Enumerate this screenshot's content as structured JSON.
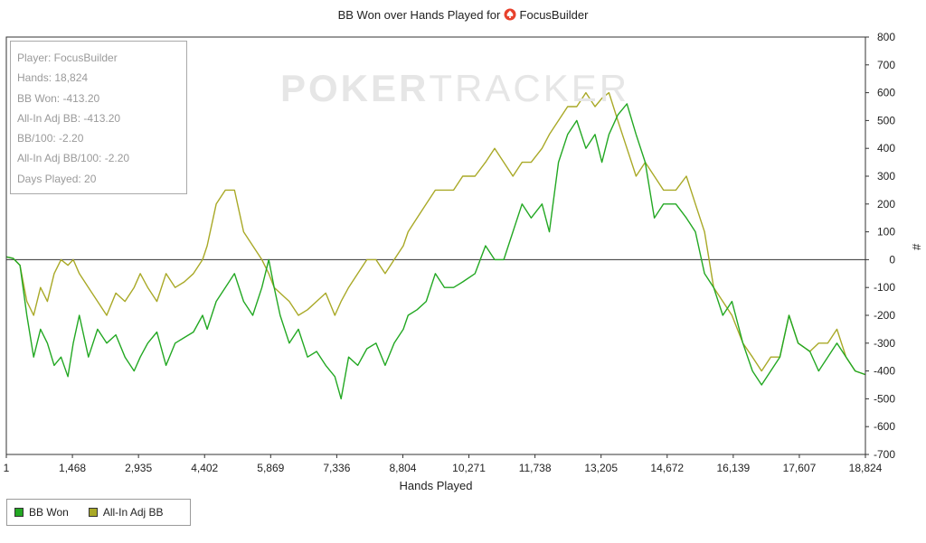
{
  "title": {
    "text": "BB Won over Hands Played for",
    "player": "FocusBuilder",
    "icon": "spade-icon",
    "icon_color": "#e8412c"
  },
  "watermark": {
    "bold_part": "POKER",
    "light_part": "TRACKER"
  },
  "stats": [
    "Player: FocusBuilder",
    "Hands: 18,824",
    "BB Won: -413.20",
    "All-In Adj BB: -413.20",
    "BB/100: -2.20",
    "All-In Adj BB/100: -2.20",
    "Days Played: 20"
  ],
  "legend": [
    {
      "name": "BB Won",
      "color": "#23a823"
    },
    {
      "name": "All-In Adj BB",
      "color": "#a9a927"
    }
  ],
  "chart_data": {
    "type": "line",
    "title": "BB Won over Hands Played for FocusBuilder",
    "xlabel": "Hands Played",
    "ylabel": "#",
    "xlim": [
      1,
      18824
    ],
    "ylim": [
      -700,
      800
    ],
    "x_ticks": [
      "1",
      "1,468",
      "2,935",
      "4,402",
      "5,869",
      "7,336",
      "8,804",
      "10,271",
      "11,738",
      "13,205",
      "14,672",
      "16,139",
      "17,607",
      "18,824"
    ],
    "y_ticks": [
      800,
      700,
      600,
      500,
      400,
      300,
      200,
      100,
      0,
      -100,
      -200,
      -300,
      -400,
      -500,
      -600,
      -700
    ],
    "grid": false,
    "legend_position": "bottom-left",
    "series": [
      {
        "name": "BB Won",
        "color": "#23a823",
        "x": [
          1,
          150,
          300,
          450,
          600,
          750,
          900,
          1050,
          1200,
          1350,
          1468,
          1600,
          1800,
          2000,
          2200,
          2400,
          2600,
          2800,
          2935,
          3100,
          3300,
          3500,
          3700,
          3900,
          4100,
          4300,
          4402,
          4600,
          4800,
          5000,
          5200,
          5400,
          5600,
          5750,
          5869,
          6000,
          6200,
          6400,
          6600,
          6800,
          7000,
          7200,
          7336,
          7500,
          7700,
          7900,
          8100,
          8300,
          8500,
          8700,
          8804,
          9000,
          9200,
          9400,
          9600,
          9800,
          10000,
          10271,
          10500,
          10700,
          10900,
          11100,
          11300,
          11500,
          11738,
          11900,
          12100,
          12300,
          12500,
          12700,
          12900,
          13050,
          13205,
          13400,
          13600,
          13800,
          14000,
          14200,
          14400,
          14672,
          14900,
          15100,
          15300,
          15500,
          15700,
          15900,
          16139,
          16350,
          16550,
          16750,
          16950,
          17150,
          17350,
          17607,
          17800,
          18000,
          18200,
          18400,
          18600,
          18824
        ],
        "values": [
          10,
          5,
          -20,
          -200,
          -350,
          -250,
          -300,
          -380,
          -350,
          -420,
          -300,
          -200,
          -350,
          -250,
          -300,
          -270,
          -350,
          -400,
          -350,
          -300,
          -260,
          -380,
          -300,
          -280,
          -260,
          -200,
          -250,
          -150,
          -100,
          -50,
          -150,
          -200,
          -100,
          0,
          -100,
          -200,
          -300,
          -250,
          -350,
          -330,
          -380,
          -420,
          -500,
          -350,
          -380,
          -320,
          -300,
          -380,
          -300,
          -250,
          -200,
          -180,
          -150,
          -50,
          -100,
          -100,
          -80,
          -50,
          50,
          0,
          0,
          100,
          200,
          150,
          200,
          100,
          350,
          450,
          500,
          400,
          450,
          350,
          450,
          520,
          560,
          450,
          350,
          150,
          200,
          200,
          150,
          100,
          -50,
          -100,
          -200,
          -150,
          -300,
          -400,
          -450,
          -400,
          -350,
          -200,
          -300,
          -330,
          -400,
          -350,
          -300,
          -350,
          -400,
          -413
        ]
      },
      {
        "name": "All-In Adj BB",
        "color": "#a9a927",
        "x": [
          1,
          150,
          300,
          450,
          600,
          750,
          900,
          1050,
          1200,
          1350,
          1468,
          1600,
          1800,
          2000,
          2200,
          2400,
          2600,
          2800,
          2935,
          3100,
          3300,
          3500,
          3700,
          3900,
          4100,
          4300,
          4402,
          4600,
          4800,
          5000,
          5200,
          5400,
          5600,
          5750,
          5869,
          6000,
          6200,
          6400,
          6600,
          6800,
          7000,
          7200,
          7336,
          7500,
          7700,
          7900,
          8100,
          8300,
          8500,
          8700,
          8804,
          9000,
          9200,
          9400,
          9600,
          9800,
          10000,
          10271,
          10500,
          10700,
          10900,
          11100,
          11300,
          11500,
          11738,
          11900,
          12100,
          12300,
          12500,
          12700,
          12900,
          13050,
          13205,
          13400,
          13600,
          13800,
          14000,
          14200,
          14400,
          14672,
          14900,
          15100,
          15300,
          15500,
          15700,
          15900,
          16139,
          16350,
          16550,
          16750,
          16950,
          17150,
          17350,
          17607,
          17800,
          18000,
          18200,
          18400,
          18600,
          18824
        ],
        "values": [
          10,
          5,
          -20,
          -150,
          -200,
          -100,
          -150,
          -50,
          0,
          -20,
          0,
          -50,
          -100,
          -150,
          -200,
          -120,
          -150,
          -100,
          -50,
          -100,
          -150,
          -50,
          -100,
          -80,
          -50,
          0,
          50,
          200,
          250,
          250,
          100,
          50,
          0,
          -50,
          -100,
          -120,
          -150,
          -200,
          -180,
          -150,
          -120,
          -200,
          -150,
          -100,
          -50,
          0,
          0,
          -50,
          0,
          50,
          100,
          150,
          200,
          250,
          250,
          250,
          300,
          300,
          350,
          400,
          350,
          300,
          350,
          350,
          400,
          450,
          500,
          550,
          550,
          600,
          550,
          580,
          600,
          500,
          400,
          300,
          350,
          300,
          250,
          250,
          300,
          200,
          100,
          -100,
          -150,
          -200,
          -300,
          -350,
          -400,
          -350,
          -350,
          -200,
          -300,
          -330,
          -300,
          -300,
          -250,
          -350,
          -400,
          -413
        ]
      }
    ]
  }
}
